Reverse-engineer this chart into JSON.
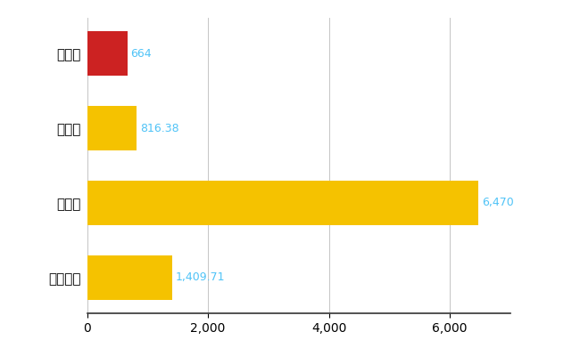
{
  "categories": [
    "東北町",
    "県平均",
    "県最大",
    "全国平均"
  ],
  "values": [
    664,
    816.38,
    6470,
    1409.71
  ],
  "bar_colors": [
    "#CC2222",
    "#F5C200",
    "#F5C200",
    "#F5C200"
  ],
  "value_labels": [
    "664",
    "816.38",
    "6,470",
    "1,409.71"
  ],
  "xlim": [
    0,
    7000
  ],
  "xticks": [
    0,
    2000,
    4000,
    6000
  ],
  "bar_height": 0.6,
  "label_color": "#4FC3F7",
  "grid_color": "#BBBBBB",
  "background_color": "#FFFFFF",
  "label_fontsize": 10,
  "tick_fontsize": 10,
  "value_fontsize": 9,
  "ytick_fontsize": 11
}
